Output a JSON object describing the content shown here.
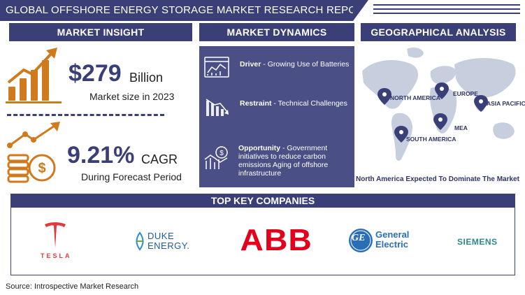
{
  "title": "GLOBAL OFFSHORE ENERGY STORAGE MARKET RESEARCH REPORT",
  "colors": {
    "primary": "#3a4077",
    "panel": "#4a4f86",
    "accent": "#d07a1e"
  },
  "insight": {
    "header": "MARKET INSIGHT",
    "market_size_value": "$279",
    "market_size_unit": "Billion",
    "market_size_label": "Market size in 2023",
    "cagr_value": "9.21%",
    "cagr_unit": "CAGR",
    "cagr_label": "During Forecast Period",
    "icons": [
      "bar-chart-growth-icon",
      "coin-stack-growth-icon"
    ]
  },
  "dynamics": {
    "header": "MARKET DYNAMICS",
    "items": [
      {
        "type": "Driver",
        "text": "Growing Use of Batteries",
        "icon": "dashboard-chart-icon"
      },
      {
        "type": "Restraint",
        "text": "Technical Challenges",
        "icon": "declining-bars-icon"
      },
      {
        "type": "Opportunity",
        "text": "Government initiatives to reduce carbon emissions Aging of offshore infrastructure",
        "icon": "growth-opportunity-icon"
      }
    ]
  },
  "geo": {
    "header": "GEOGRAPHICAL ANALYSIS",
    "regions": [
      "NORTH AMERICA",
      "EUROPE",
      "ASIA PACIFIC",
      "MEA",
      "SOUTH AMERICA"
    ],
    "dominant": "North America Expected To Dominate The Market"
  },
  "companies": {
    "header": "TOP KEY COMPANIES",
    "tesla": "TESLA",
    "duke_line1": "DUKE",
    "duke_line2": "ENERGY.",
    "abb": "ABB",
    "ge_mark": "GE",
    "ge_line1": "General",
    "ge_line2": "Electric",
    "siemens": "SIEMENS"
  },
  "source": "Source: Introspective Market Research"
}
